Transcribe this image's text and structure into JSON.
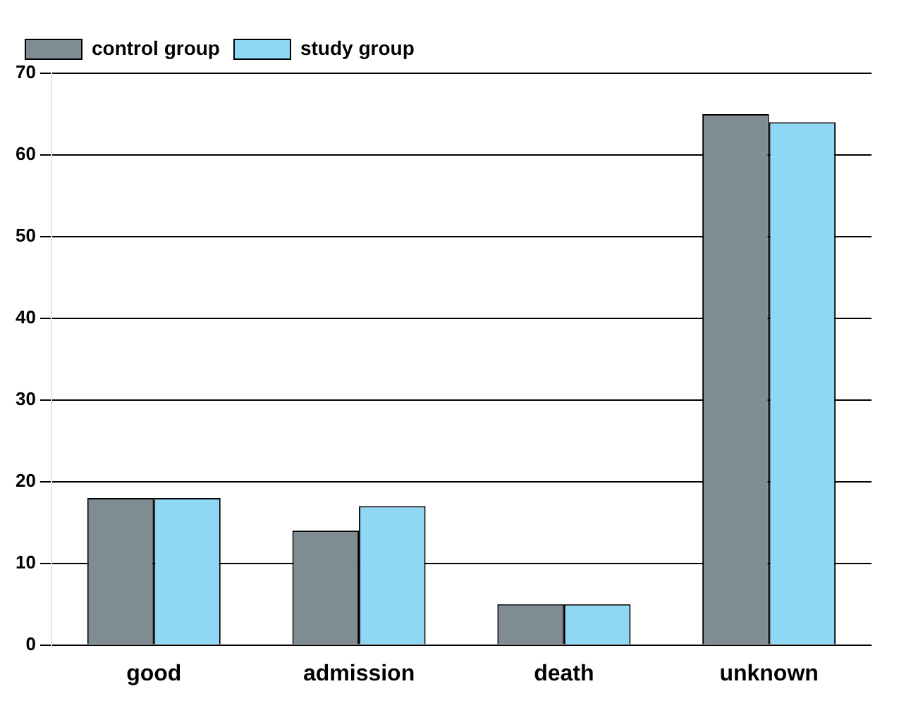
{
  "chart_data": {
    "type": "bar",
    "categories": [
      "good",
      "admission",
      "death",
      "unknown"
    ],
    "series": [
      {
        "name": "control group",
        "color": "#7f8c94",
        "values": [
          18,
          14,
          5,
          65
        ]
      },
      {
        "name": "study group",
        "color": "#8fd8f5",
        "values": [
          18,
          17,
          5,
          64
        ]
      }
    ],
    "ylim": [
      0,
      70
    ],
    "yticks": [
      0,
      10,
      20,
      30,
      40,
      50,
      60,
      70
    ],
    "grid": "y",
    "legend": "top left"
  }
}
